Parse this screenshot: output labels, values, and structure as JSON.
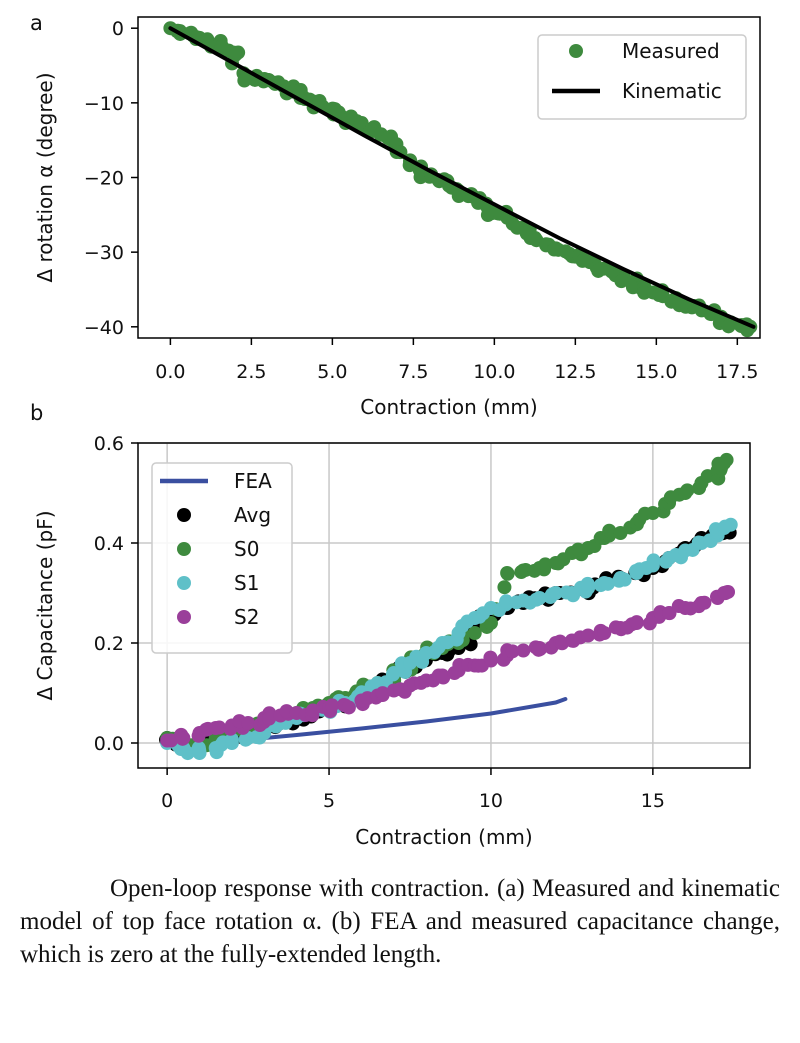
{
  "chart_data": [
    {
      "type": "scatter",
      "panel_label": "a",
      "xlabel": "Contraction (mm)",
      "ylabel": "Δ rotation α (degree)",
      "xlim": [
        -1,
        18.2
      ],
      "ylim": [
        -41.5,
        1.5
      ],
      "xticks": [
        0.0,
        2.5,
        5.0,
        7.5,
        10.0,
        12.5,
        15.0,
        17.5
      ],
      "xtick_labels": [
        "0.0",
        "2.5",
        "5.0",
        "7.5",
        "10.0",
        "12.5",
        "15.0",
        "17.5"
      ],
      "yticks": [
        0,
        -10,
        -20,
        -30,
        -40
      ],
      "ytick_labels": [
        "0",
        "−10",
        "−20",
        "−30",
        "−40"
      ],
      "grid": false,
      "legend_position": "top-right",
      "series": [
        {
          "name": "Measured",
          "kind": "scatter",
          "color": "#3e8a3e",
          "x": [
            0.0,
            0.3,
            0.6,
            0.9,
            1.2,
            1.5,
            1.8,
            2.0,
            2.3,
            2.6,
            2.9,
            3.2,
            3.5,
            3.8,
            4.1,
            4.4,
            4.7,
            5.0,
            5.3,
            5.6,
            5.9,
            6.2,
            6.5,
            6.8,
            7.1,
            7.4,
            7.7,
            8.0,
            8.3,
            8.6,
            8.9,
            9.2,
            9.5,
            9.8,
            10.1,
            10.4,
            10.7,
            11.0,
            11.3,
            11.6,
            11.9,
            12.2,
            12.5,
            12.8,
            13.1,
            13.4,
            13.7,
            14.0,
            14.3,
            14.6,
            14.9,
            15.2,
            15.5,
            15.8,
            16.1,
            16.4,
            16.7,
            17.0,
            17.3,
            17.6,
            17.9
          ],
          "y": [
            0.0,
            -0.4,
            -0.7,
            -1.3,
            -2.0,
            -2.3,
            -3.0,
            -3.6,
            -6.5,
            -6.9,
            -6.8,
            -7.3,
            -7.8,
            -8.5,
            -9.2,
            -9.8,
            -10.5,
            -11.2,
            -11.9,
            -12.4,
            -13.0,
            -13.6,
            -14.2,
            -14.9,
            -16.6,
            -17.7,
            -18.8,
            -19.9,
            -20.5,
            -21.1,
            -21.8,
            -22.5,
            -23.4,
            -24.1,
            -24.8,
            -25.4,
            -26.7,
            -27.5,
            -28.4,
            -29.1,
            -29.5,
            -29.9,
            -30.6,
            -31.1,
            -31.6,
            -32.2,
            -32.8,
            -33.4,
            -34.0,
            -34.8,
            -35.4,
            -35.9,
            -36.5,
            -37.1,
            -37.4,
            -37.8,
            -38.3,
            -38.9,
            -39.4,
            -39.8,
            -40.0
          ]
        },
        {
          "name": "Kinematic",
          "kind": "line",
          "color": "#000000",
          "x": [
            0,
            2,
            4,
            6,
            8,
            10,
            12,
            14,
            16,
            18
          ],
          "y": [
            0,
            -4.8,
            -9.6,
            -14.4,
            -19.1,
            -23.6,
            -28.1,
            -32.3,
            -36.3,
            -40.0
          ]
        }
      ]
    },
    {
      "type": "scatter",
      "panel_label": "b",
      "xlabel": "Contraction (mm)",
      "ylabel": "Δ Capacitance (pF)",
      "xlim": [
        -0.9,
        18.0
      ],
      "ylim": [
        -0.05,
        0.6
      ],
      "xticks": [
        0,
        5,
        10,
        15
      ],
      "xtick_labels": [
        "0",
        "5",
        "10",
        "15"
      ],
      "yticks": [
        0.0,
        0.2,
        0.4,
        0.6
      ],
      "ytick_labels": [
        "0.0",
        "0.2",
        "0.4",
        "0.6"
      ],
      "grid": true,
      "legend_position": "top-left",
      "series": [
        {
          "name": "FEA",
          "kind": "line",
          "color": "#3a4fa0",
          "x": [
            0,
            2,
            4,
            6,
            8,
            10,
            12,
            12.3
          ],
          "y": [
            0.0,
            0.004,
            0.016,
            0.029,
            0.043,
            0.059,
            0.081,
            0.088
          ]
        },
        {
          "name": "Avg",
          "kind": "scatter",
          "color": "#000000",
          "x": [
            0,
            0.5,
            1,
            1.5,
            2,
            2.5,
            3,
            3.5,
            4,
            4.5,
            5,
            5.5,
            6,
            6.5,
            7,
            7.5,
            8,
            8.5,
            9,
            9.5,
            10,
            10.5,
            11,
            11.5,
            12,
            12.5,
            13,
            13.5,
            14,
            14.5,
            15,
            15.5,
            16,
            16.5,
            17,
            17.2
          ],
          "y": [
            0.01,
            0.0,
            -0.01,
            0.0,
            0.015,
            0.02,
            0.03,
            0.04,
            0.05,
            0.06,
            0.07,
            0.075,
            0.09,
            0.11,
            0.13,
            0.15,
            0.17,
            0.18,
            0.19,
            0.23,
            0.26,
            0.27,
            0.28,
            0.29,
            0.3,
            0.3,
            0.31,
            0.32,
            0.33,
            0.34,
            0.35,
            0.37,
            0.39,
            0.41,
            0.42,
            0.425
          ]
        },
        {
          "name": "S0",
          "kind": "scatter",
          "color": "#3e8a3e",
          "x": [
            0,
            0.5,
            1,
            1.5,
            2,
            2.5,
            3,
            3.5,
            4,
            4.5,
            5,
            5.5,
            6,
            6.5,
            7,
            7.5,
            8,
            8.5,
            9,
            9.5,
            10,
            10.5,
            11,
            11.5,
            12,
            12.5,
            13,
            13.5,
            14,
            14.5,
            15,
            15.5,
            16,
            16.5,
            17,
            17.2
          ],
          "y": [
            0.01,
            0.0,
            -0.005,
            0.01,
            0.02,
            0.03,
            0.04,
            0.05,
            0.06,
            0.07,
            0.08,
            0.09,
            0.105,
            0.12,
            0.14,
            0.16,
            0.18,
            0.19,
            0.2,
            0.22,
            0.24,
            0.34,
            0.345,
            0.35,
            0.36,
            0.38,
            0.39,
            0.41,
            0.42,
            0.44,
            0.46,
            0.48,
            0.5,
            0.52,
            0.545,
            0.56
          ]
        },
        {
          "name": "S1",
          "kind": "scatter",
          "color": "#5fc0c8",
          "x": [
            0,
            0.5,
            1,
            1.5,
            2,
            2.5,
            3,
            3.5,
            4,
            4.5,
            5,
            5.5,
            6,
            6.5,
            7,
            7.5,
            8,
            8.5,
            9,
            9.5,
            10,
            10.5,
            11,
            11.5,
            12,
            12.5,
            13,
            13.5,
            14,
            14.5,
            15,
            15.5,
            16,
            16.5,
            17,
            17.2
          ],
          "y": [
            0.0,
            -0.01,
            -0.02,
            -0.01,
            0.0,
            0.01,
            0.02,
            0.04,
            0.05,
            0.06,
            0.07,
            0.08,
            0.1,
            0.12,
            0.14,
            0.16,
            0.18,
            0.2,
            0.22,
            0.25,
            0.27,
            0.28,
            0.285,
            0.29,
            0.3,
            0.3,
            0.31,
            0.32,
            0.33,
            0.34,
            0.355,
            0.37,
            0.385,
            0.4,
            0.415,
            0.43
          ]
        },
        {
          "name": "S2",
          "kind": "scatter",
          "color": "#9a3f9a",
          "x": [
            0,
            0.5,
            1,
            1.5,
            2,
            2.5,
            3,
            3.5,
            4,
            4.5,
            5,
            5.5,
            6,
            6.5,
            7,
            7.5,
            8,
            8.5,
            9,
            9.5,
            10,
            10.5,
            11,
            11.5,
            12,
            12.5,
            13,
            13.5,
            14,
            14.5,
            15,
            15.5,
            16,
            16.5,
            17,
            17.2
          ],
          "y": [
            0.005,
            0.01,
            0.02,
            0.03,
            0.035,
            0.04,
            0.05,
            0.055,
            0.06,
            0.065,
            0.07,
            0.075,
            0.085,
            0.095,
            0.105,
            0.115,
            0.125,
            0.135,
            0.145,
            0.155,
            0.165,
            0.175,
            0.185,
            0.19,
            0.2,
            0.205,
            0.215,
            0.22,
            0.23,
            0.24,
            0.25,
            0.26,
            0.27,
            0.28,
            0.29,
            0.3
          ]
        }
      ]
    }
  ],
  "caption": "Open-loop response with contraction. (a) Measured and kinematic model of top face rotation α. (b) FEA and measured capacitance change, which is zero at the fully-extended length."
}
